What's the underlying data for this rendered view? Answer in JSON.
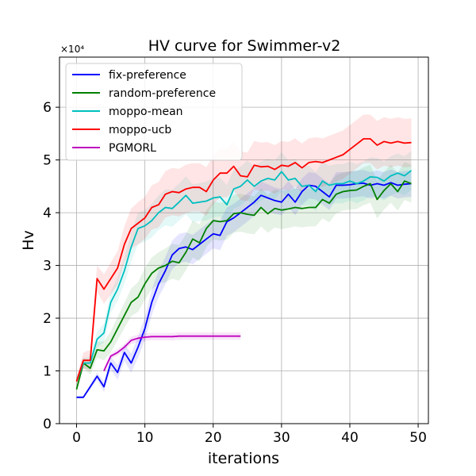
{
  "chart_data": {
    "type": "line",
    "title": "HV curve for Swimmer-v2",
    "xlabel": "iterations",
    "ylabel": "Hv",
    "y_scale_label": "×10⁴",
    "xlim": [
      -2.5,
      51.5
    ],
    "ylim": [
      0,
      6.95
    ],
    "x_ticks": [
      0,
      10,
      20,
      30,
      40,
      50
    ],
    "y_ticks": [
      0,
      1,
      2,
      3,
      4,
      5,
      6
    ],
    "grid": true,
    "legend_position": "top-left",
    "series": [
      {
        "name": "fix-preference",
        "color": "#0000ff",
        "x": [
          0,
          1,
          2,
          3,
          4,
          5,
          6,
          7,
          8,
          9,
          10,
          11,
          12,
          13,
          14,
          15,
          16,
          17,
          18,
          19,
          20,
          21,
          22,
          23,
          24,
          25,
          26,
          27,
          28,
          29,
          30,
          31,
          32,
          33,
          34,
          35,
          36,
          37,
          38,
          39,
          40,
          41,
          42,
          43,
          44,
          45,
          46,
          47,
          48,
          49
        ],
        "y": [
          0.5,
          0.5,
          0.7,
          0.9,
          0.7,
          1.15,
          0.97,
          1.35,
          1.15,
          1.45,
          1.8,
          2.3,
          2.65,
          2.9,
          3.2,
          3.32,
          3.35,
          3.3,
          3.4,
          3.5,
          3.6,
          3.57,
          3.83,
          3.9,
          4.0,
          4.1,
          4.2,
          4.33,
          4.28,
          4.23,
          4.2,
          4.35,
          4.2,
          4.4,
          4.52,
          4.5,
          4.4,
          4.3,
          4.52,
          4.52,
          4.53,
          4.55,
          4.56,
          4.52,
          4.55,
          4.52,
          4.57,
          4.52,
          4.54,
          4.55
        ],
        "band": [
          0.02,
          0.02,
          0.05,
          0.07,
          0.1,
          0.12,
          0.14,
          0.16,
          0.18,
          0.2,
          0.22,
          0.24,
          0.25,
          0.26,
          0.27,
          0.28,
          0.28,
          0.28,
          0.28,
          0.28,
          0.28,
          0.28,
          0.27,
          0.27,
          0.27,
          0.27,
          0.26,
          0.26,
          0.26,
          0.25,
          0.25,
          0.25,
          0.25,
          0.25,
          0.25,
          0.25,
          0.25,
          0.25,
          0.25,
          0.25,
          0.25,
          0.25,
          0.25,
          0.25,
          0.25,
          0.25,
          0.25,
          0.25,
          0.25,
          0.25
        ]
      },
      {
        "name": "random-preference",
        "color": "#008000",
        "x": [
          0,
          1,
          2,
          3,
          4,
          5,
          6,
          7,
          8,
          9,
          10,
          11,
          12,
          13,
          14,
          15,
          16,
          17,
          18,
          19,
          20,
          21,
          22,
          23,
          24,
          25,
          26,
          27,
          28,
          29,
          30,
          31,
          32,
          33,
          34,
          35,
          36,
          37,
          38,
          39,
          40,
          41,
          42,
          43,
          44,
          45,
          46,
          47,
          48,
          49
        ],
        "y": [
          0.65,
          1.15,
          1.05,
          1.4,
          1.38,
          1.55,
          1.8,
          2.05,
          2.3,
          2.4,
          2.65,
          2.85,
          2.95,
          3.0,
          3.08,
          3.05,
          3.25,
          3.5,
          3.43,
          3.7,
          3.85,
          3.83,
          3.85,
          3.98,
          4.0,
          3.97,
          3.95,
          4.1,
          3.98,
          4.08,
          4.05,
          4.07,
          4.1,
          4.08,
          4.1,
          4.1,
          4.25,
          4.18,
          4.35,
          4.4,
          4.42,
          4.43,
          4.5,
          4.55,
          4.25,
          4.42,
          4.55,
          4.4,
          4.6,
          4.55
        ],
        "band": [
          0.05,
          0.1,
          0.12,
          0.15,
          0.18,
          0.2,
          0.22,
          0.24,
          0.26,
          0.28,
          0.3,
          0.3,
          0.3,
          0.32,
          0.33,
          0.34,
          0.34,
          0.35,
          0.35,
          0.35,
          0.36,
          0.36,
          0.36,
          0.36,
          0.36,
          0.36,
          0.36,
          0.36,
          0.36,
          0.36,
          0.36,
          0.36,
          0.36,
          0.36,
          0.36,
          0.36,
          0.36,
          0.36,
          0.36,
          0.36,
          0.36,
          0.36,
          0.36,
          0.36,
          0.36,
          0.36,
          0.36,
          0.36,
          0.36,
          0.36
        ]
      },
      {
        "name": "moppo-mean",
        "color": "#00bfbf",
        "x": [
          0,
          1,
          2,
          3,
          4,
          5,
          6,
          7,
          8,
          9,
          10,
          11,
          12,
          13,
          14,
          15,
          16,
          17,
          18,
          19,
          20,
          21,
          22,
          23,
          24,
          25,
          26,
          27,
          28,
          29,
          30,
          31,
          32,
          33,
          34,
          35,
          36,
          37,
          38,
          39,
          40,
          41,
          42,
          43,
          44,
          45,
          46,
          47,
          48,
          49
        ],
        "y": [
          0.8,
          1.15,
          1.15,
          1.6,
          1.72,
          2.3,
          2.55,
          2.9,
          3.35,
          3.7,
          3.75,
          3.85,
          4.0,
          4.1,
          4.08,
          4.2,
          4.33,
          4.18,
          4.2,
          4.22,
          4.28,
          4.3,
          4.15,
          4.45,
          4.5,
          4.62,
          4.5,
          4.6,
          4.65,
          4.62,
          4.78,
          4.62,
          4.65,
          4.5,
          4.52,
          4.4,
          4.6,
          4.52,
          4.55,
          4.55,
          4.6,
          4.55,
          4.6,
          4.68,
          4.67,
          4.6,
          4.7,
          4.75,
          4.7,
          4.8
        ],
        "band": [
          0.08,
          0.1,
          0.12,
          0.15,
          0.18,
          0.2,
          0.22,
          0.25,
          0.28,
          0.3,
          0.3,
          0.32,
          0.33,
          0.34,
          0.35,
          0.35,
          0.36,
          0.36,
          0.36,
          0.37,
          0.37,
          0.37,
          0.37,
          0.37,
          0.37,
          0.37,
          0.37,
          0.37,
          0.37,
          0.37,
          0.37,
          0.37,
          0.37,
          0.37,
          0.37,
          0.37,
          0.37,
          0.37,
          0.37,
          0.37,
          0.37,
          0.37,
          0.37,
          0.37,
          0.37,
          0.37,
          0.37,
          0.37,
          0.37,
          0.37
        ]
      },
      {
        "name": "moppo-ucb",
        "color": "#ff0000",
        "x": [
          0,
          1,
          2,
          3,
          4,
          5,
          6,
          7,
          8,
          9,
          10,
          11,
          12,
          13,
          14,
          15,
          16,
          17,
          18,
          19,
          20,
          21,
          22,
          23,
          24,
          25,
          26,
          27,
          28,
          29,
          30,
          31,
          32,
          33,
          34,
          35,
          36,
          37,
          38,
          39,
          40,
          41,
          42,
          43,
          44,
          45,
          46,
          47,
          48,
          49
        ],
        "y": [
          0.8,
          1.2,
          1.2,
          2.75,
          2.55,
          2.75,
          2.95,
          3.4,
          3.7,
          3.8,
          3.9,
          4.1,
          4.15,
          4.35,
          4.4,
          4.38,
          4.45,
          4.48,
          4.48,
          4.4,
          4.62,
          4.75,
          4.75,
          4.88,
          4.7,
          4.68,
          4.9,
          4.87,
          4.88,
          4.82,
          4.9,
          4.88,
          4.95,
          4.85,
          4.95,
          4.97,
          4.95,
          5.0,
          5.05,
          5.1,
          5.2,
          5.3,
          5.4,
          5.4,
          5.28,
          5.35,
          5.32,
          5.35,
          5.32,
          5.33
        ],
        "band": [
          0.1,
          0.15,
          0.2,
          0.25,
          0.28,
          0.3,
          0.32,
          0.35,
          0.38,
          0.4,
          0.4,
          0.42,
          0.43,
          0.44,
          0.45,
          0.45,
          0.46,
          0.46,
          0.46,
          0.46,
          0.46,
          0.46,
          0.46,
          0.46,
          0.46,
          0.46,
          0.46,
          0.46,
          0.46,
          0.46,
          0.46,
          0.46,
          0.46,
          0.46,
          0.46,
          0.46,
          0.46,
          0.46,
          0.46,
          0.46,
          0.46,
          0.46,
          0.46,
          0.46,
          0.46,
          0.46,
          0.46,
          0.46,
          0.46,
          0.46
        ]
      },
      {
        "name": "PGMORL",
        "color": "#bf00bf",
        "x": [
          4,
          5,
          6,
          7,
          8,
          9,
          10,
          11,
          12,
          13,
          14,
          15,
          16,
          17,
          18,
          19,
          20,
          21,
          22,
          23,
          24
        ],
        "y": [
          1.0,
          1.28,
          1.35,
          1.45,
          1.58,
          1.62,
          1.64,
          1.65,
          1.65,
          1.65,
          1.65,
          1.66,
          1.66,
          1.66,
          1.66,
          1.66,
          1.66,
          1.66,
          1.66,
          1.66,
          1.66
        ],
        "band": [
          0.05,
          0.05,
          0.06,
          0.06,
          0.07,
          0.07,
          0.07,
          0.07,
          0.07,
          0.07,
          0.07,
          0.07,
          0.07,
          0.07,
          0.07,
          0.07,
          0.07,
          0.07,
          0.07,
          0.07,
          0.07
        ]
      }
    ]
  }
}
